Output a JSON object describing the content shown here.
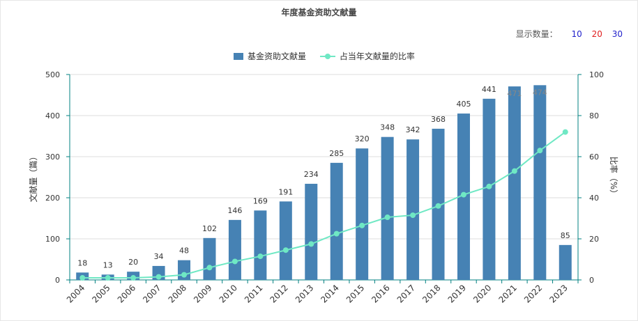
{
  "title": "年度基金资助文献量",
  "count_selector": {
    "label": "显示数量：",
    "options": [
      {
        "label": "10",
        "color": "#2222cc"
      },
      {
        "label": "20",
        "color": "#e02020"
      },
      {
        "label": "30",
        "color": "#2222cc"
      }
    ]
  },
  "legend": {
    "bar_label": "基金资助文献量",
    "line_label": "占当年文献量的比率"
  },
  "colors": {
    "bar": "#4682b4",
    "line": "#6fe8c4",
    "axis": "#008080",
    "grid": "#dddddd"
  },
  "chart_data": {
    "type": "bar",
    "title": "年度基金资助文献量",
    "categories": [
      "2004",
      "2005",
      "2006",
      "2007",
      "2008",
      "2009",
      "2010",
      "2011",
      "2012",
      "2013",
      "2014",
      "2015",
      "2016",
      "2017",
      "2018",
      "2019",
      "2020",
      "2021",
      "2022",
      "2023"
    ],
    "series": [
      {
        "name": "基金资助文献量",
        "type": "bar",
        "axis": "left",
        "values": [
          18,
          13,
          20,
          34,
          48,
          102,
          146,
          169,
          191,
          234,
          285,
          320,
          348,
          342,
          368,
          405,
          441,
          471,
          474,
          85
        ]
      },
      {
        "name": "占当年文献量的比率",
        "type": "line",
        "axis": "right",
        "values": [
          1,
          1,
          1,
          1.5,
          2.5,
          6,
          9,
          11.5,
          14.5,
          17.5,
          22.5,
          26.5,
          30.5,
          31.5,
          36,
          41.5,
          45.5,
          53,
          63,
          72
        ]
      }
    ],
    "ylabel": "文献量（篇）",
    "y2label": "比率（%）",
    "ylim": [
      0,
      500
    ],
    "y2lim": [
      0,
      100
    ],
    "yticks": [
      0,
      100,
      200,
      300,
      400,
      500
    ],
    "y2ticks": [
      0,
      20,
      40,
      60,
      80,
      100
    ],
    "grid": true,
    "legend_position": "top-center"
  }
}
